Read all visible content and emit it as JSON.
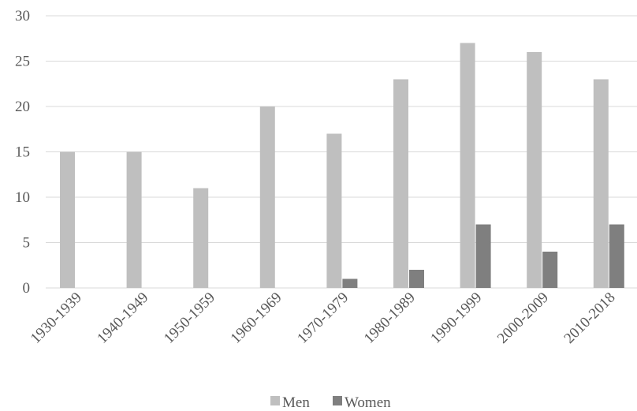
{
  "chart_data": {
    "type": "bar",
    "title": "",
    "xlabel": "",
    "ylabel": "",
    "categories": [
      "1930-1939",
      "1940-1949",
      "1950-1959",
      "1960-1969",
      "1970-1979",
      "1980-1989",
      "1990-1999",
      "2000-2009",
      "2010-2018"
    ],
    "series": [
      {
        "name": "Men",
        "color": "#bfbfbf",
        "values": [
          15,
          15,
          11,
          20,
          17,
          23,
          27,
          26,
          23
        ]
      },
      {
        "name": "Women",
        "color": "#7f7f7f",
        "values": [
          0,
          0,
          0,
          0,
          1,
          2,
          7,
          4,
          7
        ]
      }
    ],
    "ylim": [
      0,
      30
    ],
    "yticks": [
      0,
      5,
      10,
      15,
      20,
      25,
      30
    ],
    "grid": true,
    "legend": "bottom",
    "gridline_color": "#d9d9d9"
  }
}
